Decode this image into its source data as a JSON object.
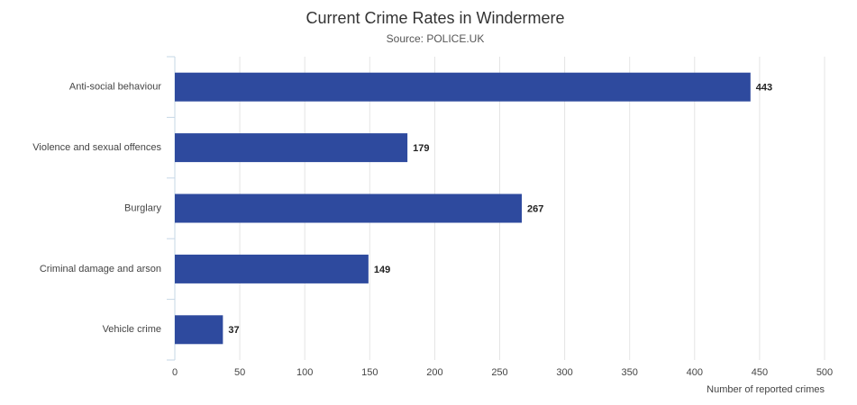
{
  "chart_data": {
    "type": "bar",
    "orientation": "horizontal",
    "title": "Current Crime Rates in Windermere",
    "subtitle": "Source: POLICE.UK",
    "x_label": "Number of reported crimes",
    "categories": [
      "Anti-social behaviour",
      "Violence and sexual offences",
      "Burglary",
      "Criminal damage and arson",
      "Vehicle crime"
    ],
    "values": [
      443,
      179,
      267,
      149,
      37
    ],
    "color": "#2e4a9e",
    "xlim": [
      0,
      500
    ],
    "xticks": [
      0,
      50,
      100,
      150,
      200,
      250,
      300,
      350,
      400,
      450,
      500
    ],
    "grid": true
  }
}
